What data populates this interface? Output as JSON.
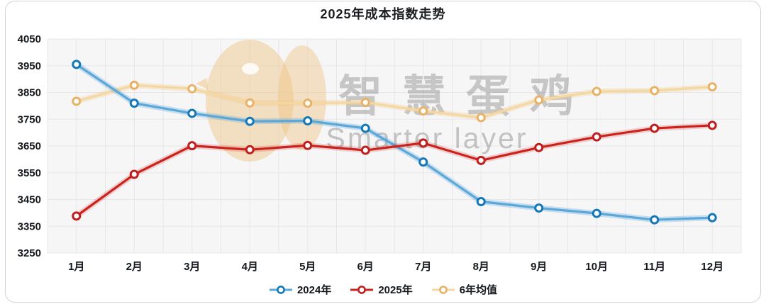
{
  "page": {
    "background_color": "#ffffff",
    "card_border_color": "#cfd2d6"
  },
  "chart_data": {
    "type": "line",
    "title": "2025年成本指数走势",
    "xlabel": "",
    "ylabel": "",
    "categories": [
      "1月",
      "2月",
      "3月",
      "4月",
      "5月",
      "6月",
      "7月",
      "8月",
      "9月",
      "10月",
      "11月",
      "12月"
    ],
    "series": [
      {
        "name": "2024年",
        "line_color": "#5aa7da",
        "marker_ring_color": "#1477b8",
        "halo_color": "rgba(90,167,218,0.30)",
        "values": [
          3955,
          3810,
          3772,
          3742,
          3744,
          3716,
          3590,
          3442,
          3418,
          3398,
          3374,
          3382
        ]
      },
      {
        "name": "2025年",
        "line_color": "#cd211c",
        "marker_ring_color": "#c01d1d",
        "halo_color": "rgba(205,33,28,0.18)",
        "values": [
          3388,
          3544,
          3651,
          3636,
          3652,
          3634,
          3661,
          3596,
          3644,
          3684,
          3716,
          3727
        ]
      },
      {
        "name": "6年均值",
        "line_color": "#f5d7a0",
        "marker_ring_color": "#e8b266",
        "halo_color": "rgba(240,200,140,0.30)",
        "values": [
          3817,
          3877,
          3864,
          3811,
          3810,
          3813,
          3781,
          3756,
          3822,
          3854,
          3857,
          3871
        ]
      }
    ],
    "ylim": [
      3250,
      4050
    ],
    "ytick_step": 100,
    "ytick_labels": [
      "3250",
      "3350",
      "3450",
      "3550",
      "3650",
      "3750",
      "3850",
      "3950",
      "4050"
    ],
    "grid": true,
    "legend_position": "bottom",
    "plot_bg_color": "#f6f6f7",
    "grid_color": "#e7e7ea",
    "axis_text_color": "#15181c"
  },
  "watermark": {
    "logo": "chick-logo",
    "text_cn": "智慧蛋鸡",
    "text_en": "Smarter layer"
  }
}
